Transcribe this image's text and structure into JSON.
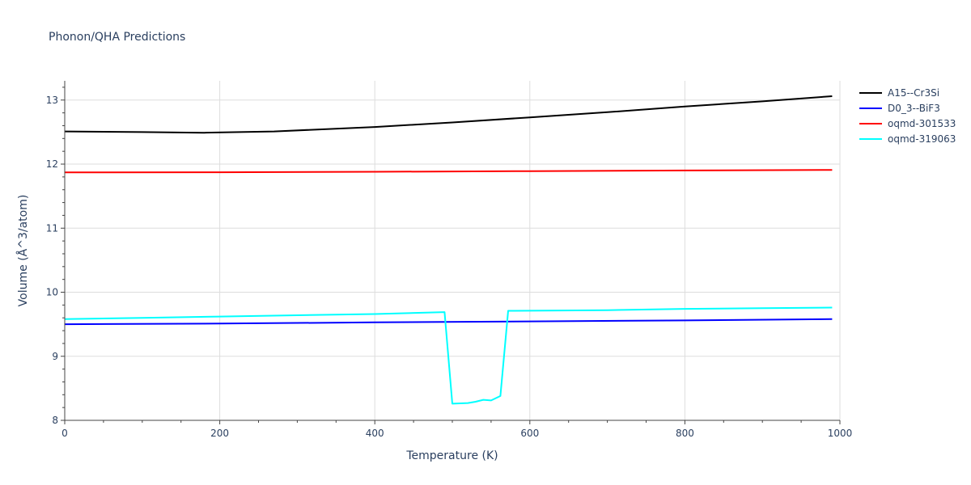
{
  "chart_data": {
    "type": "line",
    "title": "Phonon/QHA Predictions",
    "xlabel": "Temperature (K)",
    "ylabel": "Volume (Å^3/atom)",
    "xlim": [
      0,
      1000
    ],
    "ylim": [
      8,
      13.3
    ],
    "x_ticks": [
      0,
      200,
      400,
      600,
      800,
      1000
    ],
    "y_ticks": [
      8,
      9,
      10,
      11,
      12,
      13
    ],
    "x_minor_step": 50,
    "grid": true,
    "legend_position": "top-right",
    "series": [
      {
        "name": "A15--Cr3Si",
        "color": "#000000",
        "x": [
          0,
          100,
          180,
          270,
          400,
          500,
          600,
          700,
          800,
          900,
          990
        ],
        "y": [
          12.51,
          12.5,
          12.49,
          12.51,
          12.58,
          12.65,
          12.73,
          12.81,
          12.9,
          12.98,
          13.06
        ]
      },
      {
        "name": "D0_3--BiF3",
        "color": "#0000ff",
        "x": [
          0,
          200,
          400,
          600,
          800,
          990
        ],
        "y": [
          9.5,
          9.51,
          9.53,
          9.545,
          9.56,
          9.58
        ]
      },
      {
        "name": "oqmd-301533",
        "color": "#ff0000",
        "x": [
          0,
          200,
          400,
          600,
          800,
          990
        ],
        "y": [
          11.87,
          11.873,
          11.88,
          11.89,
          11.9,
          11.91
        ]
      },
      {
        "name": "oqmd-319063",
        "color": "#00ffff",
        "x": [
          0,
          100,
          200,
          300,
          400,
          490,
          500,
          520,
          530,
          540,
          550,
          562,
          572,
          700,
          800,
          900,
          990
        ],
        "y": [
          9.58,
          9.6,
          9.62,
          9.64,
          9.66,
          9.69,
          8.26,
          8.27,
          8.29,
          8.32,
          8.31,
          8.38,
          9.71,
          9.72,
          9.74,
          9.75,
          9.76
        ]
      }
    ]
  }
}
